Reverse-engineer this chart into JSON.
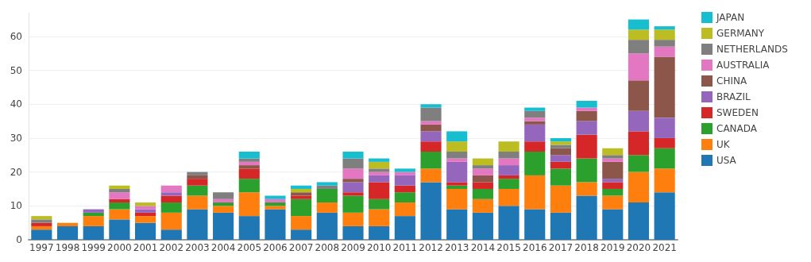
{
  "chart_data": {
    "type": "bar",
    "stacked": true,
    "categories": [
      "1997",
      "1998",
      "1999",
      "2000",
      "2001",
      "2002",
      "2003",
      "2004",
      "2005",
      "2006",
      "2007",
      "2008",
      "2009",
      "2010",
      "2011",
      "2012",
      "2013",
      "2014",
      "2015",
      "2016",
      "2017",
      "2018",
      "2019",
      "2020",
      "2021"
    ],
    "series": [
      {
        "name": "USA",
        "color": "#1f77b4",
        "values": [
          3,
          4,
          4,
          6,
          5,
          3,
          9,
          8,
          7,
          9,
          3,
          8,
          4,
          4,
          7,
          17,
          9,
          8,
          10,
          9,
          8,
          13,
          9,
          11,
          14
        ]
      },
      {
        "name": "UK",
        "color": "#ff7f0e",
        "values": [
          1,
          1,
          3,
          3,
          2,
          5,
          4,
          2,
          7,
          1,
          4,
          3,
          4,
          5,
          4,
          4,
          6,
          4,
          5,
          10,
          8,
          4,
          4,
          9,
          7
        ]
      },
      {
        "name": "CANADA",
        "color": "#2ca02c",
        "values": [
          0,
          0,
          1,
          2,
          0,
          3,
          3,
          1,
          4,
          1,
          5,
          4,
          5,
          3,
          3,
          5,
          1,
          3,
          3,
          7,
          5,
          7,
          2,
          5,
          6
        ]
      },
      {
        "name": "SWEDEN",
        "color": "#d62728",
        "values": [
          1,
          0,
          0,
          1,
          1,
          2,
          2,
          0,
          3,
          0,
          1,
          0,
          1,
          5,
          2,
          3,
          1,
          2,
          1,
          3,
          2,
          7,
          2,
          7,
          3
        ]
      },
      {
        "name": "BRAZIL",
        "color": "#9467bd",
        "values": [
          0,
          0,
          1,
          0,
          1,
          1,
          0,
          0,
          0,
          0,
          0,
          0,
          3,
          2,
          3,
          3,
          6,
          0,
          3,
          5,
          2,
          4,
          1,
          6,
          6
        ]
      },
      {
        "name": "CHINA",
        "color": "#8c564b",
        "values": [
          0,
          0,
          0,
          0,
          0,
          0,
          1,
          0,
          1,
          0,
          1,
          0,
          1,
          0,
          0,
          2,
          0,
          2,
          0,
          1,
          2,
          3,
          5,
          9,
          18
        ]
      },
      {
        "name": "AUSTRALIA",
        "color": "#e377c2",
        "values": [
          0,
          0,
          0,
          2,
          1,
          2,
          0,
          1,
          1,
          1,
          0,
          0,
          3,
          1,
          1,
          1,
          1,
          2,
          2,
          1,
          0,
          1,
          1,
          8,
          3
        ]
      },
      {
        "name": "NETHERLANDS",
        "color": "#7f7f7f",
        "values": [
          1,
          0,
          0,
          1,
          0,
          0,
          1,
          2,
          1,
          0,
          0,
          1,
          3,
          1,
          0,
          4,
          2,
          1,
          2,
          2,
          1,
          0,
          1,
          4,
          2
        ]
      },
      {
        "name": "GERMANY",
        "color": "#bcbd22",
        "values": [
          1,
          0,
          0,
          1,
          1,
          0,
          0,
          0,
          0,
          0,
          1,
          0,
          0,
          2,
          0,
          0,
          3,
          2,
          3,
          0,
          1,
          0,
          2,
          3,
          3
        ]
      },
      {
        "name": "JAPAN",
        "color": "#17becf",
        "values": [
          0,
          0,
          0,
          0,
          0,
          0,
          0,
          0,
          2,
          1,
          1,
          1,
          2,
          1,
          1,
          1,
          3,
          0,
          0,
          1,
          1,
          2,
          0,
          3,
          1
        ]
      }
    ],
    "ylim": [
      0,
      67
    ],
    "yticks": [
      0,
      10,
      20,
      30,
      40,
      50,
      60
    ],
    "grid": "y",
    "legend": "top right"
  }
}
